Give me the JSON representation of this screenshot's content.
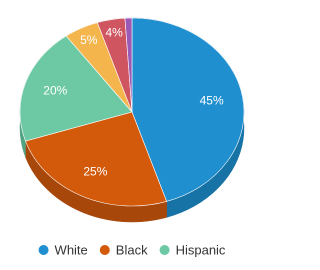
{
  "chart_data": {
    "type": "pie",
    "categories": [
      "White",
      "Black",
      "Hispanic",
      null,
      null,
      null
    ],
    "values": [
      45,
      25,
      20,
      5,
      4,
      1
    ],
    "value_labels": [
      "45%",
      "25%",
      "20%",
      "5%",
      "4%",
      null
    ],
    "colors": [
      "#1f8fcf",
      "#d35a0b",
      "#6cc9a4",
      "#f4b54c",
      "#cf5561",
      "#9b59b6"
    ],
    "side_colors": [
      "#1772a6",
      "#a8470a",
      "#52a383",
      "#c68f35",
      "#a6414c",
      "#7a4590"
    ]
  }
}
